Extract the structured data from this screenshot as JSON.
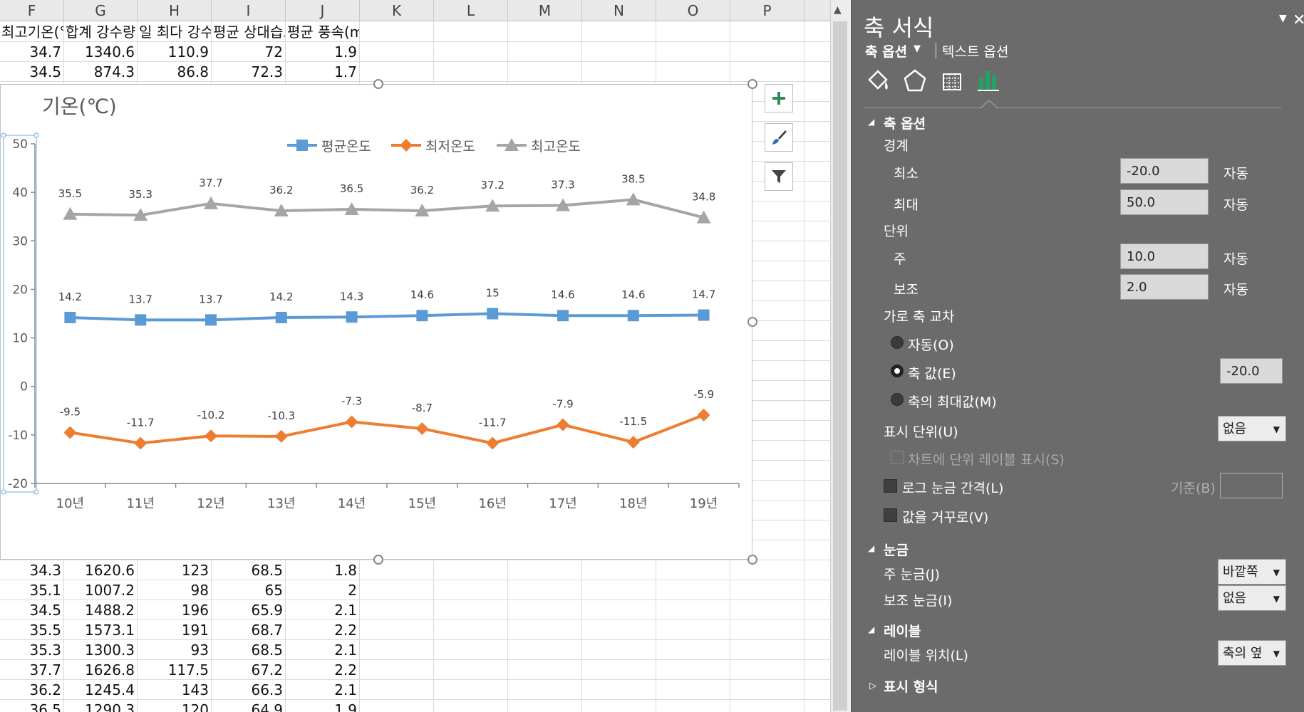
{
  "spreadsheet": {
    "column_headers": [
      "F",
      "G",
      "H",
      "I",
      "J",
      "K",
      "L",
      "M",
      "N",
      "O",
      "P"
    ],
    "header_row": [
      "최고기온(°C)",
      "합계 강수량",
      "일 최다 강수량",
      "평균 상대습도",
      "평균 풍속(m/s)"
    ],
    "top_rows": [
      [
        "34.7",
        "1340.6",
        "110.9",
        "72",
        "1.9"
      ],
      [
        "34.5",
        "874.3",
        "86.8",
        "72.3",
        "1.7"
      ]
    ],
    "bottom_rows": [
      [
        "34.3",
        "1620.6",
        "123",
        "68.5",
        "1.8"
      ],
      [
        "35.1",
        "1007.2",
        "98",
        "65",
        "2"
      ],
      [
        "34.5",
        "1488.2",
        "196",
        "65.9",
        "2.1"
      ],
      [
        "35.5",
        "1573.1",
        "191",
        "68.7",
        "2.2"
      ],
      [
        "35.3",
        "1300.3",
        "93",
        "68.5",
        "2.1"
      ],
      [
        "37.7",
        "1626.8",
        "117.5",
        "67.2",
        "2.2"
      ],
      [
        "36.2",
        "1245.4",
        "143",
        "66.3",
        "2.1"
      ],
      [
        "36.5",
        "1290.3",
        "120",
        "64.9",
        "1.9"
      ]
    ]
  },
  "chart_data": {
    "type": "line",
    "title": "기온(℃)",
    "categories": [
      "10년",
      "11년",
      "12년",
      "13년",
      "14년",
      "15년",
      "16년",
      "17년",
      "18년",
      "19년"
    ],
    "ylim": [
      -20,
      50
    ],
    "y_major_unit": 10,
    "y_ticks": [
      "50",
      "40",
      "30",
      "20",
      "10",
      "0",
      "-10",
      "-20"
    ],
    "legend_position": "top",
    "grid": false,
    "series": [
      {
        "name": "평균온도",
        "color": "#5b9bd5",
        "marker": "square",
        "values": [
          14.2,
          13.7,
          13.7,
          14.2,
          14.3,
          14.6,
          15,
          14.6,
          14.6,
          14.7
        ],
        "labels": [
          "14.2",
          "13.7",
          "13.7",
          "14.2",
          "14.3",
          "14.6",
          "15",
          "14.6",
          "14.6",
          "14.7"
        ]
      },
      {
        "name": "최저온도",
        "color": "#ed7d31",
        "marker": "diamond",
        "values": [
          -9.5,
          -11.7,
          -10.2,
          -10.3,
          -7.3,
          -8.7,
          -11.7,
          -7.9,
          -11.5,
          -5.9
        ],
        "labels": [
          "-9.5",
          "-11.7",
          "-10.2",
          "-10.3",
          "-7.3",
          "-8.7",
          "-11.7",
          "-7.9",
          "-11.5",
          "-5.9"
        ]
      },
      {
        "name": "최고온도",
        "color": "#a5a5a5",
        "marker": "triangle",
        "values": [
          35.5,
          35.3,
          37.7,
          36.2,
          36.5,
          36.2,
          37.2,
          37.3,
          38.5,
          34.8
        ],
        "labels": [
          "35.5",
          "35.3",
          "37.7",
          "36.2",
          "36.5",
          "36.2",
          "37.2",
          "37.3",
          "38.5",
          "34.8"
        ]
      }
    ]
  },
  "chart_buttons": {
    "add": "plus-icon",
    "style": "brush-icon",
    "filter": "funnel-icon"
  },
  "pane": {
    "title": "축 서식",
    "tab_axis_options": "축 옵션",
    "tab_text_options": "텍스트 옵션",
    "section_axis_options": "축 옵션",
    "bounds": "경계",
    "min_label": "최소",
    "min_value": "-20.0",
    "min_auto": "자동",
    "max_label": "최대",
    "max_value": "50.0",
    "max_auto": "자동",
    "units": "단위",
    "major_label": "주",
    "major_value": "10.0",
    "major_auto": "자동",
    "minor_label": "보조",
    "minor_value": "2.0",
    "minor_auto": "자동",
    "cross_label": "가로 축 교차",
    "cross_auto": "자동(O)",
    "cross_value_label": "축 값(E)",
    "cross_value": "-20.0",
    "cross_max": "축의 최대값(M)",
    "display_units_label": "표시 단위(U)",
    "display_units_value": "없음",
    "show_units_label": "차트에 단위 레이블 표시(S)",
    "log_label": "로그 눈금 간격(L)",
    "base_label": "기준(B)",
    "base_value": "",
    "reverse_label": "값을 거꾸로(V)",
    "section_ticks": "눈금",
    "major_tick_label": "주 눈금(J)",
    "major_tick_value": "바깥쪽",
    "minor_tick_label": "보조 눈금(I)",
    "minor_tick_value": "없음",
    "section_labels": "레이블",
    "label_pos_label": "레이블 위치(L)",
    "label_pos_value": "축의 옆",
    "section_number": "표시 형식"
  }
}
